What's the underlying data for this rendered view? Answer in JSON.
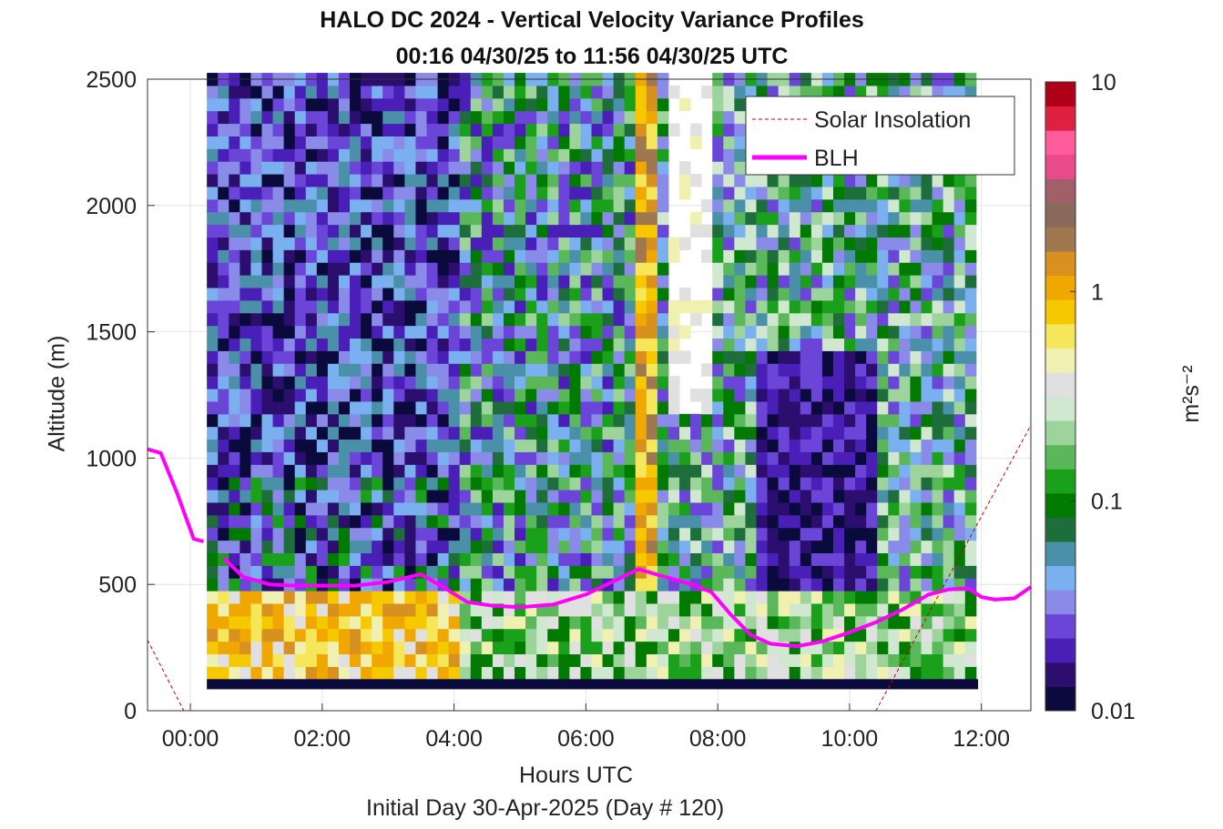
{
  "title": "HALO DC 2024 - Vertical Velocity Variance Profiles",
  "subtitle": "00:16 04/30/25 to 11:56 04/30/25  UTC",
  "xlabel": "Hours UTC",
  "xlabel2": "Initial Day 30-Apr-2025 (Day # 120)",
  "ylabel": "Altitude (m)",
  "colorbar_label": "m²s⁻²",
  "chart_data": {
    "type": "heatmap",
    "title": "HALO DC 2024 - Vertical Velocity Variance Profiles",
    "xlabel": "Hours UTC",
    "ylabel": "Altitude (m)",
    "x_range_hours": [
      -0.65,
      12.75
    ],
    "ylim": [
      0,
      2500
    ],
    "x_ticks": [
      {
        "value": 0,
        "label": "00:00"
      },
      {
        "value": 2,
        "label": "02:00"
      },
      {
        "value": 4,
        "label": "04:00"
      },
      {
        "value": 6,
        "label": "06:00"
      },
      {
        "value": 8,
        "label": "08:00"
      },
      {
        "value": 10,
        "label": "10:00"
      },
      {
        "value": 12,
        "label": "12:00"
      }
    ],
    "y_ticks": [
      0,
      500,
      1000,
      1500,
      2000,
      2500
    ],
    "grid": true,
    "legend": {
      "location": "top-right",
      "entries": [
        {
          "label": "Solar Insolation",
          "color": "#cc0000",
          "style": "dashed"
        },
        {
          "label": "BLH",
          "color": "#ff00ff",
          "style": "solid"
        }
      ]
    },
    "colorbar": {
      "scale": "log",
      "range": [
        0.01,
        10
      ],
      "ticks": [
        {
          "value": 10,
          "label": "10"
        },
        {
          "value": 1,
          "label": "1"
        },
        {
          "value": 0.1,
          "label": "0.1"
        },
        {
          "value": 0.01,
          "label": "0.01"
        }
      ],
      "colors": [
        "#0a0a3c",
        "#2b0e6e",
        "#4a1fb8",
        "#6a45d8",
        "#8a8ae8",
        "#7ab0f0",
        "#4a90a8",
        "#1e6e3c",
        "#007a00",
        "#1aa01a",
        "#5ab85a",
        "#9cd49c",
        "#cfe8cf",
        "#e0e0e0",
        "#f0f0b0",
        "#f5e65a",
        "#f5c800",
        "#f0a800",
        "#d8901e",
        "#a07850",
        "#8a6a5a",
        "#a0606a",
        "#e84a8a",
        "#ff5a9a",
        "#e02040",
        "#b00018"
      ]
    },
    "heatmap_grid": {
      "time_start": 0.25,
      "time_end": 11.95,
      "time_step": 0.1667,
      "alt_start": 125,
      "alt_end": 2500,
      "alt_step": 50,
      "note_bottom_row_color": "#0a0a3c"
    },
    "blh_series": {
      "name": "BLH",
      "x": [
        -0.65,
        -0.45,
        -0.2,
        0.05,
        0.2
      ],
      "y": [
        1035,
        1020,
        860,
        680,
        670
      ]
    },
    "blh_series_2": {
      "name": "BLH",
      "x": [
        0.5,
        0.8,
        1.2,
        1.6,
        2.0,
        2.5,
        3.0,
        3.5,
        3.8,
        4.2,
        4.6,
        5.0,
        5.5,
        6.0,
        6.4,
        6.8,
        7.2,
        7.6,
        7.9,
        8.2,
        8.5,
        8.8,
        9.0,
        9.2,
        9.6,
        10.0,
        10.4,
        10.8,
        11.2,
        11.5,
        11.8,
        12.0,
        12.2,
        12.5,
        12.75
      ],
      "y": [
        605,
        530,
        500,
        495,
        495,
        495,
        510,
        540,
        495,
        430,
        415,
        410,
        420,
        460,
        510,
        560,
        530,
        500,
        470,
        380,
        300,
        265,
        260,
        255,
        275,
        310,
        350,
        400,
        460,
        480,
        485,
        450,
        440,
        445,
        490
      ]
    },
    "solar_insolation": {
      "name": "Solar Insolation",
      "x": [
        -0.65,
        -0.1,
        0.0,
        10.4,
        12.75
      ],
      "y": [
        280,
        0,
        0,
        0,
        1130
      ]
    }
  }
}
